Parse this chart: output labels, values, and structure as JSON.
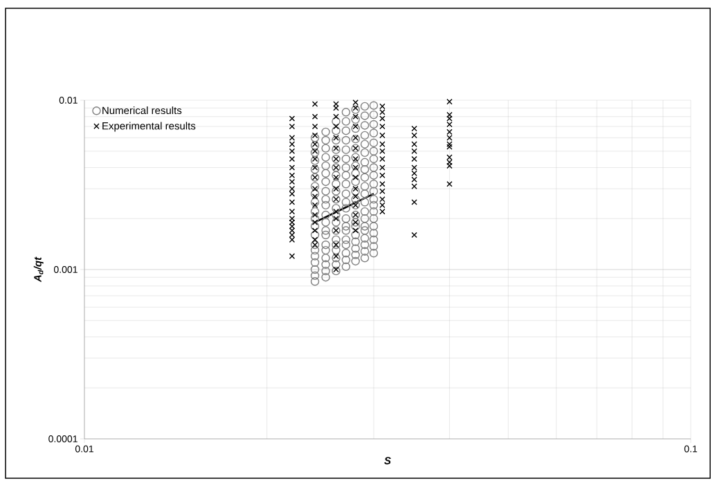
{
  "chart_data": {
    "type": "scatter",
    "xlabel": "S",
    "ylabel": "A$_{d}$/qt",
    "log": "xy",
    "grid": true,
    "legend": "top left",
    "xlim": [
      0.01,
      0.1
    ],
    "xticks": [
      0.01,
      0.1
    ],
    "ylim": [
      0.0001,
      0.01
    ],
    "yticks": [
      0.0001,
      0.001,
      0.01
    ],
    "series": [
      {
        "name": "Numerical results",
        "color": "#808080",
        "marker": "circle",
        "x": [
          0.024,
          0.024,
          0.024,
          0.024,
          0.024,
          0.024,
          0.024,
          0.024,
          0.024,
          0.024,
          0.024,
          0.024,
          0.024,
          0.024,
          0.024,
          0.024,
          0.024,
          0.024,
          0.024,
          0.024,
          0.025,
          0.025,
          0.025,
          0.025,
          0.025,
          0.025,
          0.025,
          0.025,
          0.025,
          0.025,
          0.025,
          0.025,
          0.025,
          0.025,
          0.025,
          0.025,
          0.025,
          0.025,
          0.025,
          0.025,
          0.026,
          0.026,
          0.026,
          0.026,
          0.026,
          0.026,
          0.026,
          0.026,
          0.026,
          0.026,
          0.026,
          0.026,
          0.026,
          0.026,
          0.026,
          0.026,
          0.026,
          0.026,
          0.026,
          0.026,
          0.027,
          0.027,
          0.027,
          0.027,
          0.027,
          0.027,
          0.027,
          0.027,
          0.027,
          0.027,
          0.027,
          0.027,
          0.027,
          0.027,
          0.027,
          0.027,
          0.027,
          0.027,
          0.027,
          0.027,
          0.028,
          0.028,
          0.028,
          0.028,
          0.028,
          0.028,
          0.028,
          0.028,
          0.028,
          0.028,
          0.028,
          0.028,
          0.028,
          0.028,
          0.028,
          0.028,
          0.028,
          0.028,
          0.028,
          0.028,
          0.029,
          0.029,
          0.029,
          0.029,
          0.029,
          0.029,
          0.029,
          0.029,
          0.029,
          0.029,
          0.029,
          0.029,
          0.029,
          0.029,
          0.029,
          0.029,
          0.029,
          0.029,
          0.029,
          0.029,
          0.03,
          0.03,
          0.03,
          0.03,
          0.03,
          0.03,
          0.03,
          0.03,
          0.03,
          0.03,
          0.03,
          0.03,
          0.03,
          0.03,
          0.03,
          0.03,
          0.03,
          0.03,
          0.03,
          0.03
        ],
        "values": [
          0.00085,
          0.00092,
          0.001,
          0.0011,
          0.0012,
          0.0013,
          0.0014,
          0.0016,
          0.0018,
          0.002,
          0.0022,
          0.0025,
          0.0028,
          0.0031,
          0.0035,
          0.0039,
          0.0044,
          0.0049,
          0.0054,
          0.006,
          0.0009,
          0.00098,
          0.00107,
          0.00117,
          0.0013,
          0.0014,
          0.0016,
          0.0017,
          0.0019,
          0.0021,
          0.0024,
          0.0026,
          0.0029,
          0.0033,
          0.0037,
          0.0041,
          0.0046,
          0.0052,
          0.0058,
          0.0065,
          0.00098,
          0.00107,
          0.00117,
          0.0013,
          0.0014,
          0.0015,
          0.0017,
          0.0019,
          0.0021,
          0.0023,
          0.0026,
          0.0029,
          0.0032,
          0.0036,
          0.004,
          0.0045,
          0.0051,
          0.0058,
          0.0066,
          0.0075,
          0.00104,
          0.00114,
          0.00125,
          0.0014,
          0.0015,
          0.0017,
          0.0018,
          0.002,
          0.0023,
          0.0025,
          0.0028,
          0.0032,
          0.0036,
          0.004,
          0.0045,
          0.0051,
          0.0058,
          0.0066,
          0.0075,
          0.0085,
          0.00112,
          0.00122,
          0.00133,
          0.00146,
          0.0016,
          0.0018,
          0.0019,
          0.0021,
          0.0024,
          0.0026,
          0.0029,
          0.0033,
          0.0037,
          0.0041,
          0.0046,
          0.0052,
          0.0059,
          0.0068,
          0.0077,
          0.0088,
          0.00117,
          0.00128,
          0.0014,
          0.00153,
          0.0017,
          0.0018,
          0.002,
          0.0022,
          0.0025,
          0.0028,
          0.0031,
          0.0035,
          0.0039,
          0.0043,
          0.0049,
          0.0055,
          0.0062,
          0.0071,
          0.0081,
          0.0092,
          0.00125,
          0.00137,
          0.0015,
          0.00164,
          0.0018,
          0.002,
          0.0022,
          0.0024,
          0.0026,
          0.0029,
          0.0032,
          0.0036,
          0.004,
          0.0045,
          0.005,
          0.0056,
          0.0064,
          0.0072,
          0.0082,
          0.0093
        ]
      },
      {
        "name": "Experimental results",
        "color": "#000000",
        "marker": "cross",
        "x": [
          0.022,
          0.022,
          0.022,
          0.022,
          0.022,
          0.022,
          0.022,
          0.022,
          0.022,
          0.022,
          0.022,
          0.022,
          0.022,
          0.022,
          0.022,
          0.022,
          0.022,
          0.022,
          0.022,
          0.022,
          0.024,
          0.024,
          0.024,
          0.024,
          0.024,
          0.024,
          0.024,
          0.024,
          0.024,
          0.024,
          0.024,
          0.024,
          0.024,
          0.024,
          0.024,
          0.024,
          0.024,
          0.026,
          0.026,
          0.026,
          0.026,
          0.026,
          0.026,
          0.026,
          0.026,
          0.026,
          0.026,
          0.026,
          0.026,
          0.026,
          0.026,
          0.026,
          0.026,
          0.026,
          0.028,
          0.028,
          0.028,
          0.028,
          0.028,
          0.028,
          0.028,
          0.028,
          0.028,
          0.028,
          0.028,
          0.028,
          0.028,
          0.028,
          0.028,
          0.031,
          0.031,
          0.031,
          0.031,
          0.031,
          0.031,
          0.031,
          0.031,
          0.031,
          0.031,
          0.031,
          0.031,
          0.031,
          0.031,
          0.031,
          0.035,
          0.035,
          0.035,
          0.035,
          0.035,
          0.035,
          0.035,
          0.035,
          0.035,
          0.035,
          0.035,
          0.04,
          0.04,
          0.04,
          0.04,
          0.04,
          0.04,
          0.04,
          0.04,
          0.04,
          0.04,
          0.04,
          0.04
        ],
        "values": [
          0.0078,
          0.007,
          0.006,
          0.0055,
          0.005,
          0.0045,
          0.004,
          0.0036,
          0.0033,
          0.003,
          0.0028,
          0.0025,
          0.0022,
          0.002,
          0.0019,
          0.0018,
          0.0017,
          0.0016,
          0.0015,
          0.0012,
          0.0095,
          0.008,
          0.007,
          0.0062,
          0.0055,
          0.005,
          0.0045,
          0.004,
          0.0035,
          0.003,
          0.0027,
          0.0024,
          0.0021,
          0.0019,
          0.0017,
          0.0015,
          0.0014,
          0.0095,
          0.009,
          0.008,
          0.007,
          0.006,
          0.0052,
          0.0045,
          0.004,
          0.0035,
          0.003,
          0.0026,
          0.0022,
          0.002,
          0.0017,
          0.0014,
          0.0012,
          0.001,
          0.0097,
          0.009,
          0.008,
          0.007,
          0.006,
          0.0052,
          0.0045,
          0.004,
          0.0035,
          0.003,
          0.0027,
          0.0024,
          0.0021,
          0.0019,
          0.0017,
          0.0092,
          0.0085,
          0.0078,
          0.007,
          0.0062,
          0.0055,
          0.005,
          0.0045,
          0.004,
          0.0036,
          0.0032,
          0.0029,
          0.0026,
          0.0024,
          0.0022,
          0.0068,
          0.0062,
          0.0055,
          0.005,
          0.0045,
          0.004,
          0.0037,
          0.0034,
          0.0031,
          0.0025,
          0.0016,
          0.0098,
          0.0082,
          0.0078,
          0.0072,
          0.0065,
          0.006,
          0.0055,
          0.0053,
          0.0046,
          0.0043,
          0.0041,
          0.0032
        ]
      },
      {
        "type": "line",
        "color": "#000000",
        "marker": "none",
        "line_style": "solid",
        "x": [
          0.024,
          0.03
        ],
        "values": [
          0.0019,
          0.0028
        ]
      }
    ]
  }
}
